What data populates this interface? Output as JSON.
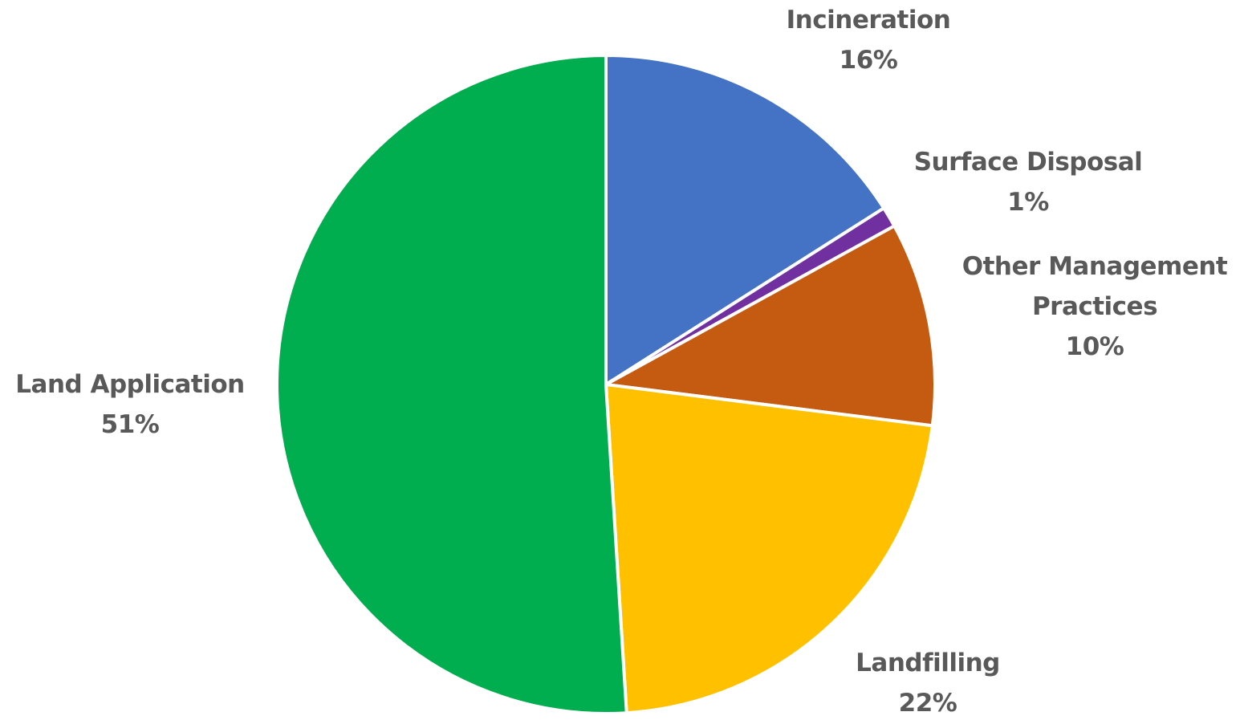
{
  "chart_data": {
    "type": "pie",
    "title": "",
    "slices": [
      {
        "label": "Incineration",
        "value": 16,
        "display": "16%",
        "color": "#4472C4"
      },
      {
        "label": "Surface Disposal",
        "value": 1,
        "display": "1%",
        "color": "#7030A0"
      },
      {
        "label": "Other Management Practices",
        "value": 10,
        "display": "10%",
        "color": "#C55A11"
      },
      {
        "label": "Landfilling",
        "value": 22,
        "display": "22%",
        "color": "#FFC000"
      },
      {
        "label": "Land Application",
        "value": 51,
        "display": "51%",
        "color": "#00AD4F"
      }
    ],
    "start_angle": "12 o'clock",
    "direction": "clockwise",
    "legend": "none",
    "data_labels": "outside, category name and percentage"
  }
}
